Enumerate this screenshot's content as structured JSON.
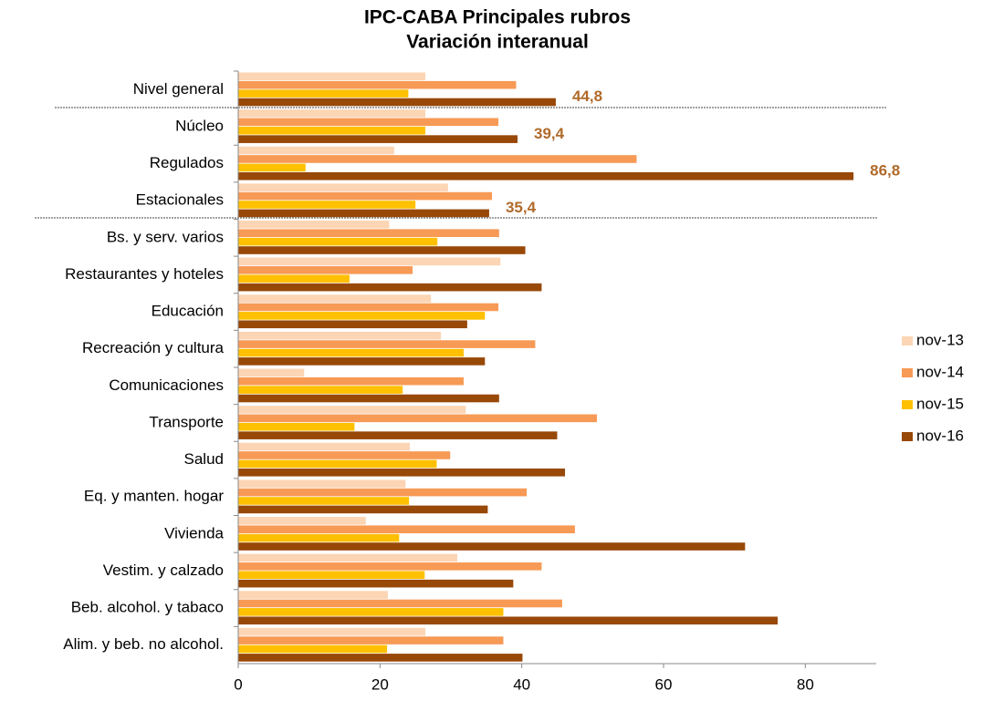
{
  "chart_data": {
    "type": "bar",
    "orientation": "horizontal",
    "title": "IPC-CABA Principales rubros",
    "subtitle": "Variación interanual",
    "categories": [
      "Nivel general",
      "Núcleo",
      "Regulados",
      "Estacionales",
      "Bs. y serv. varios",
      "Restaurantes y hoteles",
      "Educación",
      "Recreación y cultura",
      "Comunicaciones",
      "Transporte",
      "Salud",
      "Eq. y manten. hogar",
      "Vivienda",
      "Vestim. y calzado",
      "Beb. alcohol. y tabaco",
      "Alim. y beb. no alcohol."
    ],
    "series": [
      {
        "name": "nov-13",
        "color": "#fcd5b4",
        "values": [
          26.4,
          26.4,
          22.0,
          29.6,
          21.3,
          37.0,
          27.2,
          28.6,
          9.3,
          32.1,
          24.2,
          23.6,
          18.0,
          30.9,
          21.1,
          26.4
        ]
      },
      {
        "name": "nov-14",
        "color": "#f79a55",
        "values": [
          39.2,
          36.7,
          56.2,
          35.8,
          36.8,
          24.6,
          36.7,
          41.9,
          31.8,
          50.6,
          29.9,
          40.7,
          47.5,
          42.8,
          45.7,
          37.4
        ]
      },
      {
        "name": "nov-15",
        "color": "#ffc000",
        "values": [
          24.0,
          26.4,
          9.5,
          25.0,
          28.1,
          15.7,
          34.8,
          31.8,
          23.2,
          16.4,
          28.0,
          24.1,
          22.7,
          26.3,
          37.4,
          21.0
        ]
      },
      {
        "name": "nov-16",
        "color": "#984807",
        "values": [
          44.8,
          39.4,
          86.8,
          35.4,
          40.5,
          42.8,
          32.3,
          34.8,
          36.8,
          45.0,
          46.1,
          35.2,
          71.5,
          38.8,
          76.1,
          40.1
        ],
        "value_labels": [
          "44,8",
          "39,4",
          "86,8",
          "35,4",
          null,
          null,
          null,
          null,
          null,
          null,
          null,
          null,
          null,
          null,
          null,
          null
        ]
      }
    ],
    "xlim": [
      0,
      90
    ],
    "xticks": [
      0,
      20,
      40,
      60,
      80
    ],
    "legend": "right"
  }
}
